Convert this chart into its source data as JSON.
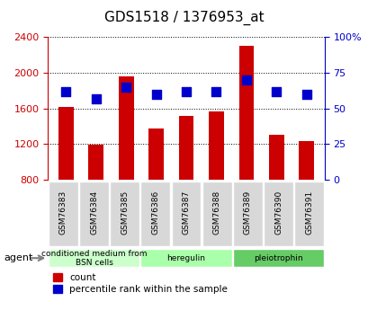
{
  "title": "GDS1518 / 1376953_at",
  "samples": [
    "GSM76383",
    "GSM76384",
    "GSM76385",
    "GSM76386",
    "GSM76387",
    "GSM76388",
    "GSM76389",
    "GSM76390",
    "GSM76391"
  ],
  "counts": [
    1620,
    1190,
    1960,
    1380,
    1520,
    1570,
    2300,
    1310,
    1230
  ],
  "percentiles": [
    62,
    57,
    65,
    60,
    62,
    62,
    70,
    62,
    60
  ],
  "y_min": 800,
  "y_max": 2400,
  "y_ticks": [
    800,
    1200,
    1600,
    2000,
    2400
  ],
  "pct_min": 0,
  "pct_max": 100,
  "pct_ticks": [
    0,
    25,
    50,
    75,
    100
  ],
  "groups": [
    {
      "label": "conditioned medium from\nBSN cells",
      "start": 0,
      "end": 3,
      "color": "#ccffcc"
    },
    {
      "label": "heregulin",
      "start": 3,
      "end": 6,
      "color": "#aaffaa"
    },
    {
      "label": "pleiotrophin",
      "start": 6,
      "end": 9,
      "color": "#66cc66"
    }
  ],
  "bar_color": "#cc0000",
  "dot_color": "#0000cc",
  "bar_width": 0.5,
  "dot_size": 60,
  "xlabel_fontsize": 7,
  "title_fontsize": 11,
  "tick_color_left": "#cc0000",
  "tick_color_right": "#0000cc",
  "agent_label": "agent",
  "legend_count_label": "count",
  "legend_pct_label": "percentile rank within the sample"
}
